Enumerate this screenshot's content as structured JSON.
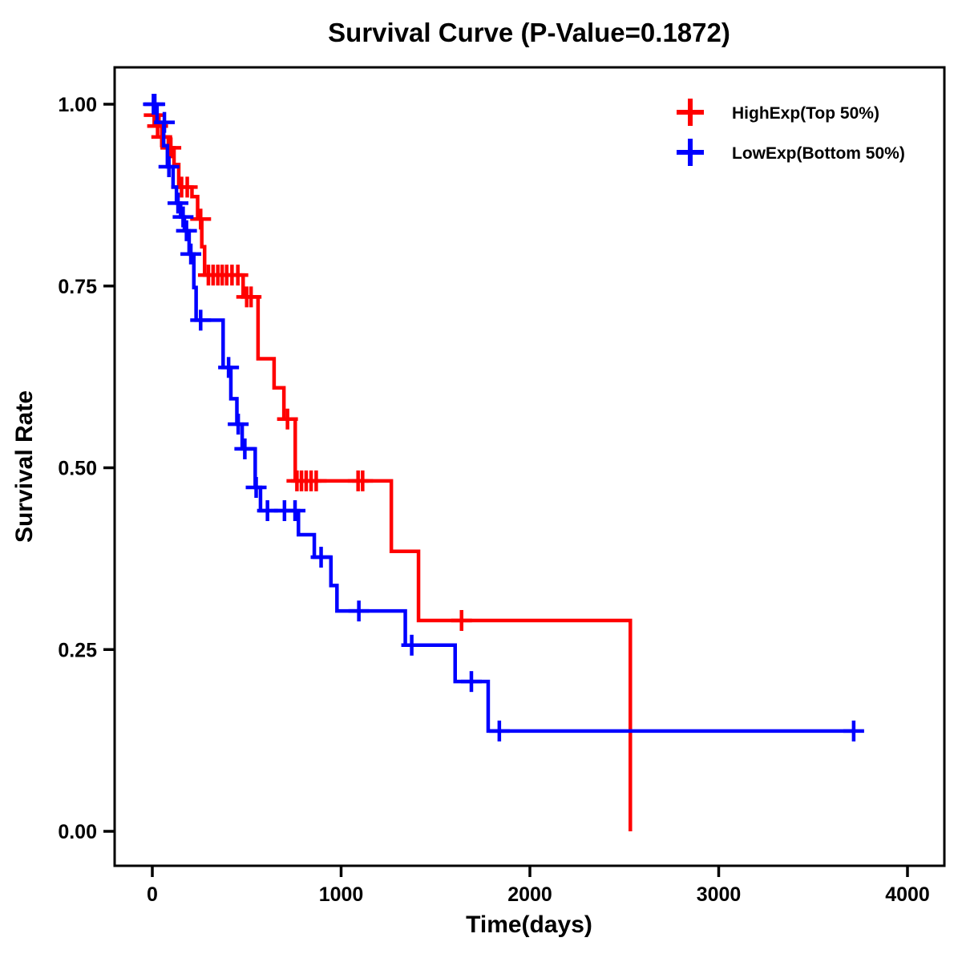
{
  "chart_data": {
    "type": "line",
    "subtype": "kaplan-meier-step-curve",
    "title": "Survival Curve (P-Value=0.1872)",
    "p_value": "0.1872",
    "xlabel": "Time(days)",
    "ylabel": "Survival Rate",
    "xlim": [
      0,
      4000
    ],
    "ylim": [
      0.0,
      1.0
    ],
    "grid": false,
    "legend_position": "top-right",
    "x_ticks": [
      {
        "value": 0,
        "label": "0"
      },
      {
        "value": 1000,
        "label": "1000"
      },
      {
        "value": 2000,
        "label": "2000"
      },
      {
        "value": 3000,
        "label": "3000"
      },
      {
        "value": 4000,
        "label": "4000"
      }
    ],
    "y_ticks": [
      {
        "value": 0.0,
        "label": "0.00"
      },
      {
        "value": 0.25,
        "label": "0.25"
      },
      {
        "value": 0.5,
        "label": "0.50"
      },
      {
        "value": 0.75,
        "label": "0.75"
      },
      {
        "value": 1.0,
        "label": "1.00"
      }
    ],
    "series": [
      {
        "name": "HighExp(Top 50%)",
        "color": "#FF0000",
        "steps": [
          [
            0,
            1.0
          ],
          [
            8,
            0.985
          ],
          [
            35,
            0.97
          ],
          [
            60,
            0.955
          ],
          [
            85,
            0.94
          ],
          [
            115,
            0.917
          ],
          [
            140,
            0.886
          ],
          [
            210,
            0.873
          ],
          [
            240,
            0.842
          ],
          [
            262,
            0.804
          ],
          [
            277,
            0.765
          ],
          [
            481,
            0.735
          ],
          [
            560,
            0.65
          ],
          [
            645,
            0.61
          ],
          [
            697,
            0.567
          ],
          [
            757,
            0.482
          ],
          [
            1266,
            0.385
          ],
          [
            1410,
            0.29
          ],
          [
            2532,
            0.0
          ]
        ],
        "censors": [
          [
            10,
            0.985
          ],
          [
            28,
            0.97
          ],
          [
            50,
            0.955
          ],
          [
            98,
            0.94
          ],
          [
            155,
            0.886
          ],
          [
            185,
            0.886
          ],
          [
            256,
            0.842
          ],
          [
            297,
            0.765
          ],
          [
            322,
            0.765
          ],
          [
            347,
            0.765
          ],
          [
            370,
            0.765
          ],
          [
            394,
            0.765
          ],
          [
            422,
            0.765
          ],
          [
            453,
            0.765
          ],
          [
            500,
            0.735
          ],
          [
            523,
            0.735
          ],
          [
            716,
            0.567
          ],
          [
            766,
            0.482
          ],
          [
            790,
            0.482
          ],
          [
            815,
            0.482
          ],
          [
            841,
            0.482
          ],
          [
            868,
            0.482
          ],
          [
            1090,
            0.482
          ],
          [
            1114,
            0.482
          ],
          [
            1638,
            0.29
          ]
        ]
      },
      {
        "name": "LowExp(Bottom 50%)",
        "color": "#0000FF",
        "steps": [
          [
            0,
            1.0
          ],
          [
            25,
            0.975
          ],
          [
            60,
            0.943
          ],
          [
            80,
            0.914
          ],
          [
            110,
            0.886
          ],
          [
            128,
            0.864
          ],
          [
            150,
            0.845
          ],
          [
            170,
            0.826
          ],
          [
            195,
            0.794
          ],
          [
            220,
            0.748
          ],
          [
            232,
            0.703
          ],
          [
            375,
            0.638
          ],
          [
            416,
            0.595
          ],
          [
            448,
            0.56
          ],
          [
            476,
            0.526
          ],
          [
            545,
            0.473
          ],
          [
            573,
            0.441
          ],
          [
            774,
            0.408
          ],
          [
            858,
            0.377
          ],
          [
            946,
            0.338
          ],
          [
            978,
            0.303
          ],
          [
            1340,
            0.256
          ],
          [
            1604,
            0.206
          ],
          [
            1779,
            0.138
          ],
          [
            3720,
            0.138
          ]
        ],
        "censors": [
          [
            6,
            1.0
          ],
          [
            13,
            1.0
          ],
          [
            64,
            0.975
          ],
          [
            88,
            0.914
          ],
          [
            136,
            0.864
          ],
          [
            163,
            0.845
          ],
          [
            181,
            0.826
          ],
          [
            204,
            0.794
          ],
          [
            256,
            0.703
          ],
          [
            404,
            0.638
          ],
          [
            455,
            0.56
          ],
          [
            490,
            0.526
          ],
          [
            550,
            0.473
          ],
          [
            610,
            0.441
          ],
          [
            700,
            0.441
          ],
          [
            756,
            0.441
          ],
          [
            894,
            0.377
          ],
          [
            1094,
            0.303
          ],
          [
            1374,
            0.256
          ],
          [
            1690,
            0.206
          ],
          [
            1838,
            0.138
          ],
          [
            3715,
            0.138
          ]
        ]
      }
    ]
  }
}
